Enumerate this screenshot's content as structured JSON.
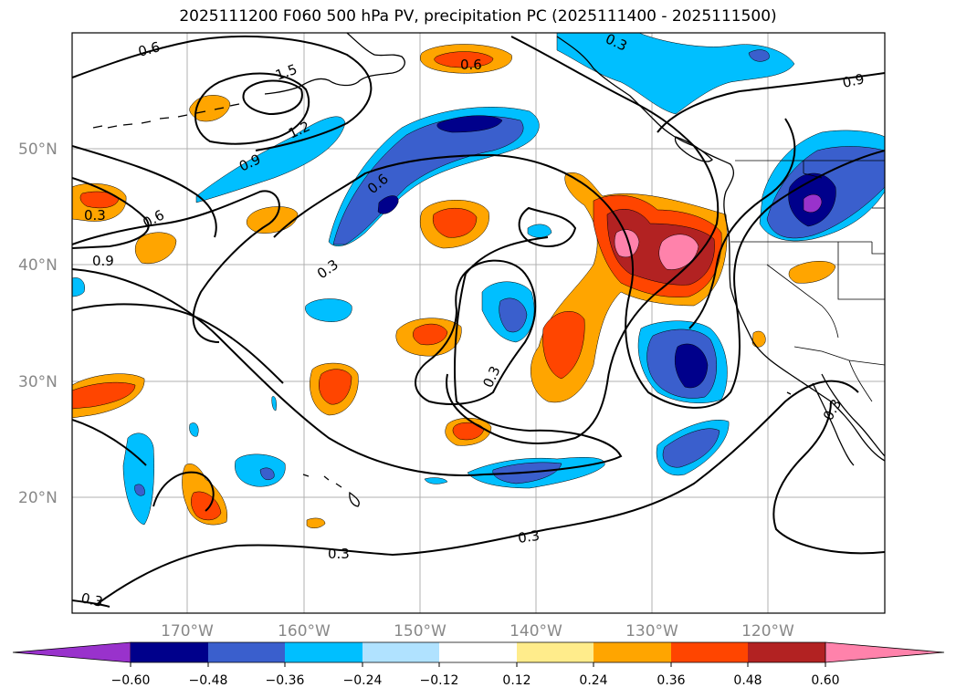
{
  "title": "2025111200 F060 500 hPa PV, precipitation PC (2025111400 - 2025111500)",
  "latitude_labels": [
    "50°N",
    "40°N",
    "30°N",
    "20°N"
  ],
  "longitude_labels": [
    "170°W",
    "160°W",
    "150°W",
    "140°W",
    "130°W",
    "120°W"
  ],
  "contour_labels": [
    "0.6",
    "1.5",
    "1.2",
    "0.9",
    "0.3",
    "0.6",
    "0.9",
    "0.6",
    "0.6",
    "0.3",
    "0.3",
    "0.3",
    "0.3",
    "0.3",
    "0.3",
    "0.9",
    "0.3"
  ],
  "colorbar": {
    "colors": [
      "#9932cc",
      "#00008b",
      "#3a5fcd",
      "#00bfff",
      "#b0e2ff",
      "#ffffff",
      "#ffec8b",
      "#ffa500",
      "#ff4500",
      "#b22222",
      "#ff82ab"
    ],
    "ticks": [
      "−0.60",
      "−0.48",
      "−0.36",
      "−0.24",
      "−0.12",
      "0.12",
      "0.24",
      "0.36",
      "0.48",
      "0.60"
    ]
  }
}
